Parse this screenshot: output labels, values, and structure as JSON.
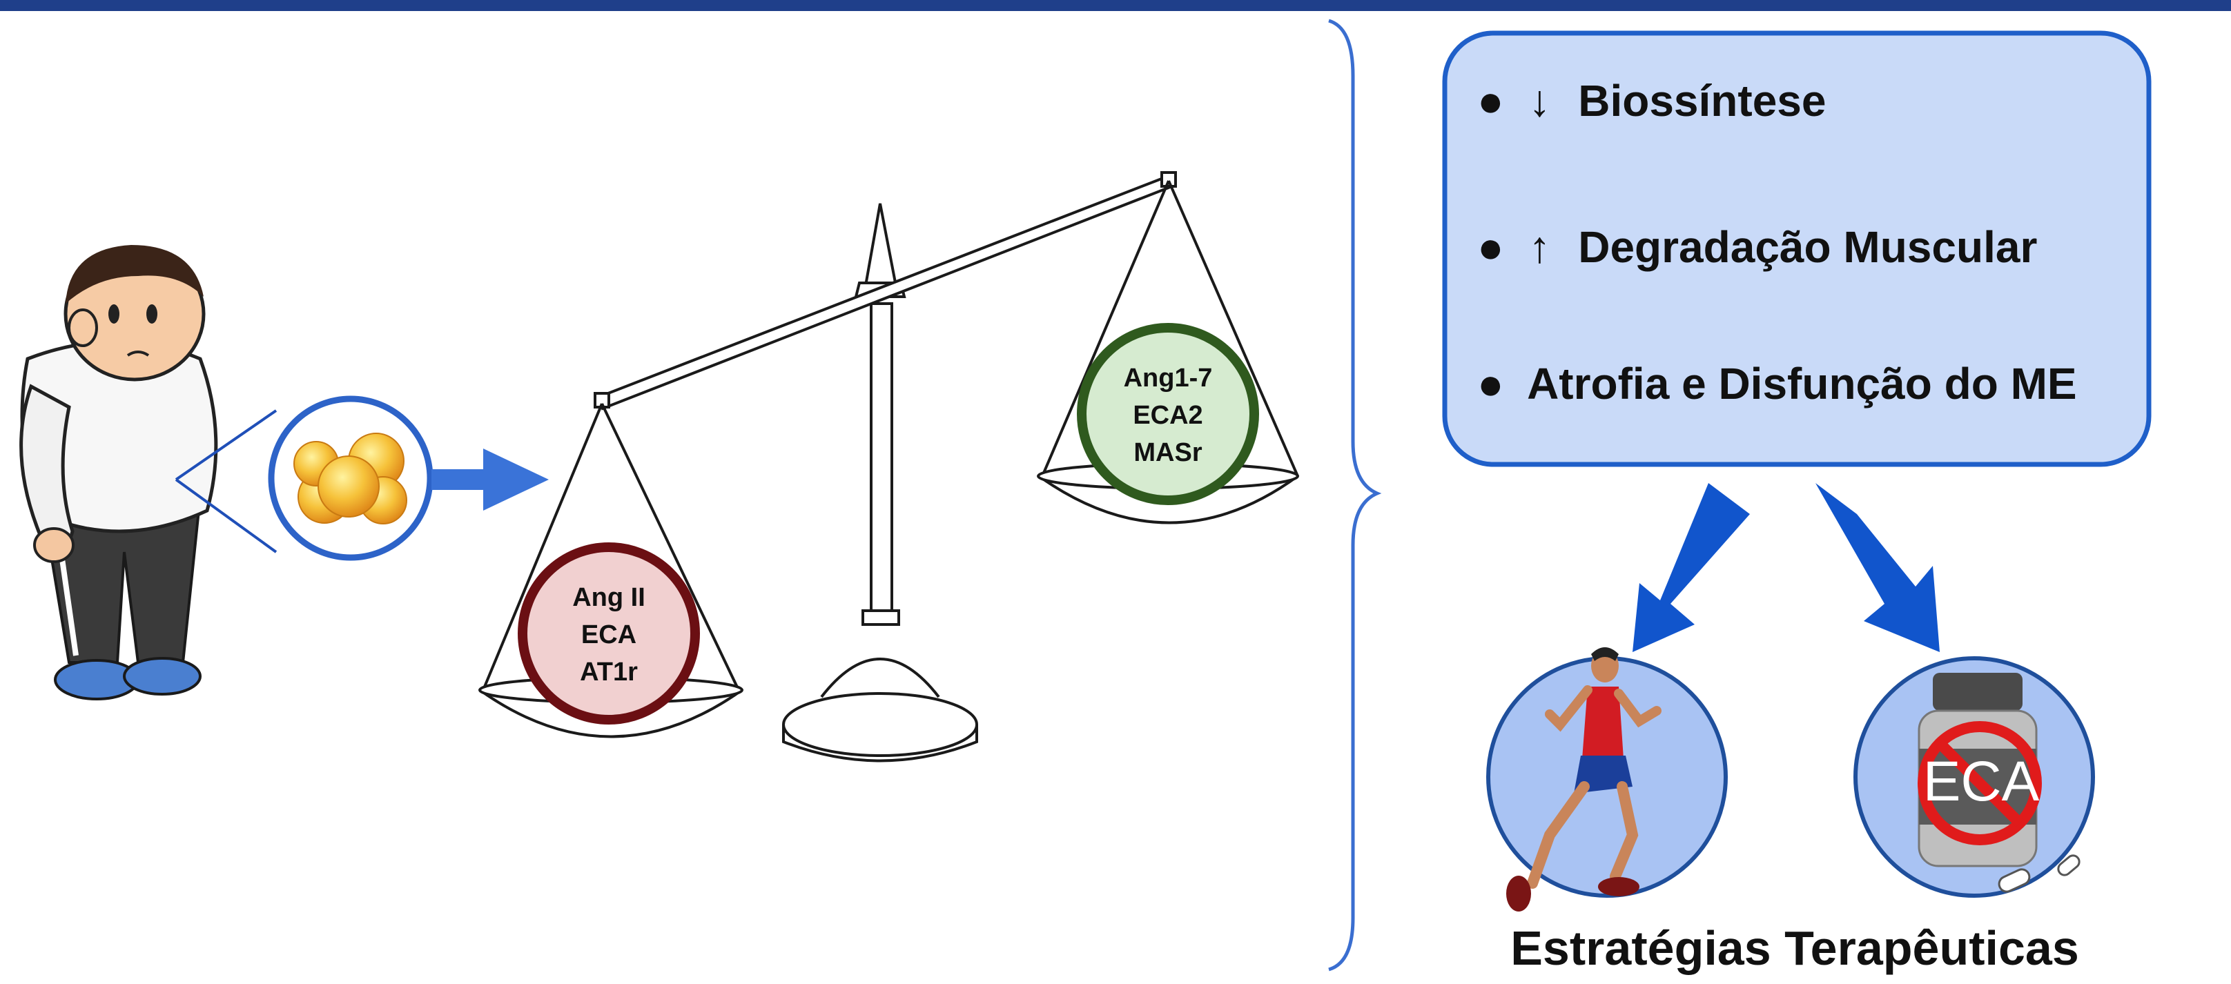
{
  "balance": {
    "left_pan": {
      "lines": [
        "Ang II",
        "ECA",
        "AT1r"
      ],
      "ring_color": "#6b0f13",
      "fill_color": "#f1d0d0"
    },
    "right_pan": {
      "lines": [
        "Ang1-7",
        "ECA2",
        "MASr"
      ],
      "ring_color": "#2f5a1e",
      "fill_color": "#d6ebd0"
    }
  },
  "effects_box": {
    "fill_color": "#c9daf8",
    "border_color": "#1f5fc9",
    "items": [
      {
        "bullet": "●",
        "arrow": "↓",
        "text": "Biossíntese"
      },
      {
        "bullet": "●",
        "arrow": "↑",
        "text": "Degradação Muscular"
      },
      {
        "bullet": "●",
        "arrow": "",
        "text": "Atrofia e Disfunção do ME"
      }
    ]
  },
  "strategies": {
    "caption": "Estratégias Terapêuticas",
    "drug_label": "ECA",
    "circle_fill": "#a9c3f3",
    "circle_border": "#1f4f9c"
  },
  "colors": {
    "accent_blue": "#3a73d8",
    "arrow_dark_blue": "#1155cc",
    "top_bar": "#1f3f8a"
  },
  "icons": [
    "obese-person-icon",
    "fat-cells-icon",
    "balance-scale-icon",
    "runner-icon",
    "medicine-bottle-icon",
    "prohibition-icon",
    "pill-icon"
  ]
}
